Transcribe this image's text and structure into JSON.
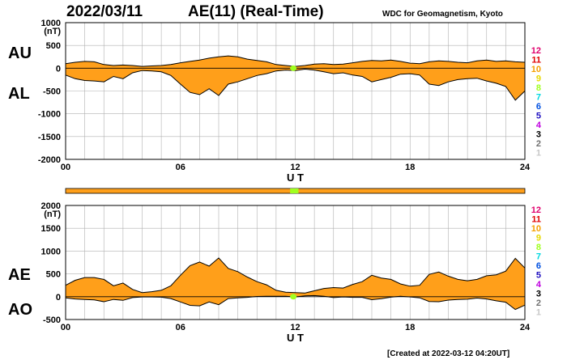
{
  "header": {
    "date": "2022/03/11",
    "title": "AE(11) (Real-Time)",
    "source": "WDC for Geomagnetism, Kyoto"
  },
  "footer": {
    "created": "[Created at 2022-03-12 04:20UT]"
  },
  "legend": {
    "items": [
      {
        "label": "12",
        "color": "#e0006e"
      },
      {
        "label": "11",
        "color": "#e00000"
      },
      {
        "label": "10",
        "color": "#f5a000"
      },
      {
        "label": "9",
        "color": "#e6d800"
      },
      {
        "label": "8",
        "color": "#a0ff20"
      },
      {
        "label": "7",
        "color": "#00d8e0"
      },
      {
        "label": "6",
        "color": "#0050e0"
      },
      {
        "label": "5",
        "color": "#2010c0"
      },
      {
        "label": "4",
        "color": "#c000e0"
      },
      {
        "label": "3",
        "color": "#000000"
      },
      {
        "label": "2",
        "color": "#707070"
      },
      {
        "label": "1",
        "color": "#c8c8c8"
      }
    ]
  },
  "colors": {
    "fill": "#ff9f1a",
    "highlight": "#a0ff20",
    "line": "#000000",
    "grid": "#b0b0b0"
  },
  "station_bar": {
    "color": "#ff9f1a",
    "highlight": "#a0ff20",
    "highlight_range": [
      11.9,
      12.0
    ]
  },
  "chart_data": [
    {
      "type": "area",
      "series": [
        {
          "name": "AU",
          "x": [
            0,
            0.5,
            1,
            1.5,
            2,
            2.5,
            3,
            3.5,
            4,
            4.5,
            5,
            5.5,
            6,
            6.5,
            7,
            7.5,
            8,
            8.5,
            9,
            9.5,
            10,
            10.5,
            11,
            11.5,
            12,
            12.5,
            13,
            13.5,
            14,
            14.5,
            15,
            15.5,
            16,
            16.5,
            17,
            17.5,
            18,
            18.5,
            19,
            19.5,
            20,
            20.5,
            21,
            21.5,
            22,
            22.5,
            23,
            23.5,
            24
          ],
          "values": [
            100,
            130,
            150,
            140,
            80,
            60,
            70,
            60,
            40,
            50,
            60,
            80,
            120,
            150,
            180,
            220,
            250,
            270,
            250,
            200,
            170,
            140,
            80,
            60,
            40,
            60,
            90,
            100,
            80,
            90,
            120,
            150,
            170,
            160,
            180,
            150,
            110,
            100,
            140,
            160,
            150,
            130,
            120,
            160,
            180,
            150,
            160,
            140,
            130
          ]
        },
        {
          "name": "AL",
          "x": [
            0,
            0.5,
            1,
            1.5,
            2,
            2.5,
            3,
            3.5,
            4,
            4.5,
            5,
            5.5,
            6,
            6.5,
            7,
            7.5,
            8,
            8.5,
            9,
            9.5,
            10,
            10.5,
            11,
            11.5,
            12,
            12.5,
            13,
            13.5,
            14,
            14.5,
            15,
            15.5,
            16,
            16.5,
            17,
            17.5,
            18,
            18.5,
            19,
            19.5,
            20,
            20.5,
            21,
            21.5,
            22,
            22.5,
            23,
            23.5,
            24
          ],
          "values": [
            -150,
            -230,
            -270,
            -280,
            -300,
            -180,
            -230,
            -100,
            -50,
            -60,
            -80,
            -160,
            -350,
            -530,
            -580,
            -450,
            -600,
            -350,
            -300,
            -230,
            -160,
            -120,
            -60,
            -40,
            -50,
            -20,
            -40,
            -80,
            -120,
            -100,
            -150,
            -180,
            -300,
            -250,
            -200,
            -130,
            -120,
            -150,
            -350,
            -380,
            -300,
            -250,
            -230,
            -220,
            -280,
            -330,
            -400,
            -700,
            -500
          ]
        }
      ],
      "ylabel": "(nT)",
      "xlabel": "U T",
      "ylim": [
        -2000,
        1000
      ],
      "yticks": [
        1000,
        500,
        0,
        -500,
        -1000,
        -1500,
        -2000
      ],
      "xticks": [
        "00",
        "06",
        "12",
        "18",
        "24"
      ],
      "xlim": [
        0,
        24
      ],
      "labels": [
        "AU",
        "AL"
      ],
      "grid": true
    },
    {
      "type": "area",
      "series": [
        {
          "name": "AE",
          "x": [
            0,
            0.5,
            1,
            1.5,
            2,
            2.5,
            3,
            3.5,
            4,
            4.5,
            5,
            5.5,
            6,
            6.5,
            7,
            7.5,
            8,
            8.5,
            9,
            9.5,
            10,
            10.5,
            11,
            11.5,
            12,
            12.5,
            13,
            13.5,
            14,
            14.5,
            15,
            15.5,
            16,
            16.5,
            17,
            17.5,
            18,
            18.5,
            19,
            19.5,
            20,
            20.5,
            21,
            21.5,
            22,
            22.5,
            23,
            23.5,
            24
          ],
          "values": [
            250,
            360,
            420,
            420,
            380,
            240,
            300,
            160,
            90,
            110,
            140,
            240,
            470,
            680,
            760,
            670,
            850,
            620,
            550,
            430,
            330,
            260,
            140,
            100,
            90,
            80,
            130,
            180,
            200,
            190,
            270,
            330,
            470,
            410,
            380,
            280,
            230,
            250,
            490,
            540,
            450,
            380,
            350,
            380,
            460,
            480,
            560,
            840,
            630
          ]
        },
        {
          "name": "AO",
          "x": [
            0,
            0.5,
            1,
            1.5,
            2,
            2.5,
            3,
            3.5,
            4,
            4.5,
            5,
            5.5,
            6,
            6.5,
            7,
            7.5,
            8,
            8.5,
            9,
            9.5,
            10,
            10.5,
            11,
            11.5,
            12,
            12.5,
            13,
            13.5,
            14,
            14.5,
            15,
            15.5,
            16,
            16.5,
            17,
            17.5,
            18,
            18.5,
            19,
            19.5,
            20,
            20.5,
            21,
            21.5,
            22,
            22.5,
            23,
            23.5,
            24
          ],
          "values": [
            -25,
            -50,
            -60,
            -70,
            -110,
            -60,
            -80,
            -20,
            -5,
            -5,
            -10,
            -40,
            -115,
            -190,
            -200,
            -115,
            -175,
            -40,
            -25,
            -15,
            5,
            10,
            10,
            10,
            -5,
            20,
            25,
            10,
            -20,
            -5,
            -15,
            -15,
            -65,
            -45,
            -10,
            10,
            -5,
            -25,
            -105,
            -110,
            -75,
            -60,
            -55,
            -30,
            -50,
            -90,
            -120,
            -280,
            -185
          ]
        }
      ],
      "ylabel": "(nT)",
      "xlabel": "U T",
      "ylim": [
        -500,
        2000
      ],
      "yticks": [
        2000,
        1500,
        1000,
        500,
        0,
        -500
      ],
      "xticks": [
        "00",
        "06",
        "12",
        "18",
        "24"
      ],
      "xlim": [
        0,
        24
      ],
      "labels": [
        "AE",
        "AO"
      ],
      "grid": true
    }
  ]
}
